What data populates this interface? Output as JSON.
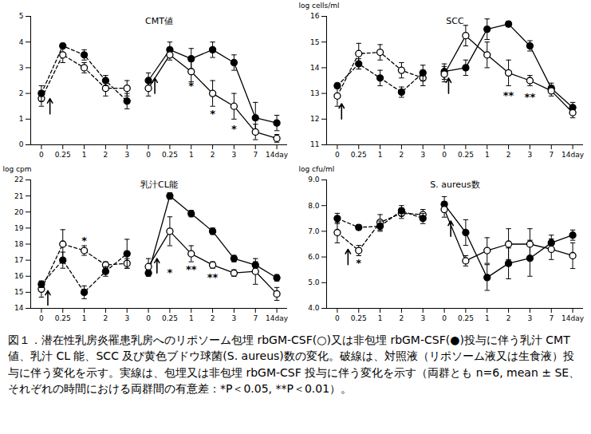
{
  "chart_data": [
    {
      "type": "line",
      "title": "CMT値",
      "ylabel": null,
      "categories": [
        "0",
        "0.25",
        "1",
        "2",
        "3",
        "0",
        "0.25",
        "1",
        "2",
        "3",
        "7",
        "14day"
      ],
      "ylim": [
        0,
        5
      ],
      "yticks": [
        0,
        1,
        2,
        3,
        4,
        5
      ],
      "grid": false,
      "series": [
        {
          "color": "#000000",
          "marker": "circle_open",
          "line_style": "dashed",
          "values": [
            1.8,
            3.5,
            3.0,
            2.2,
            2.2,
            null,
            null,
            null,
            null,
            null,
            null,
            null
          ],
          "errors": [
            0.3,
            0.3,
            0.2,
            0.3,
            0.3,
            null,
            null,
            null,
            null,
            null,
            null,
            null
          ]
        },
        {
          "color": "#000000",
          "marker": "circle_filled",
          "line_style": "dashed",
          "values": [
            2.0,
            3.85,
            3.5,
            2.5,
            1.7,
            null,
            null,
            null,
            null,
            null,
            null,
            null
          ],
          "errors": [
            0.3,
            0.1,
            0.2,
            0.2,
            0.3,
            null,
            null,
            null,
            null,
            null,
            null,
            null
          ]
        },
        {
          "color": "#000000",
          "marker": "circle_filled",
          "line_style": "solid",
          "values": [
            null,
            null,
            null,
            null,
            null,
            2.5,
            3.7,
            3.35,
            3.7,
            3.2,
            1.05,
            0.85
          ],
          "errors": [
            null,
            null,
            null,
            null,
            null,
            0.3,
            0.3,
            0.4,
            0.3,
            0.3,
            0.6,
            0.3
          ]
        },
        {
          "color": "#000000",
          "marker": "circle_open",
          "line_style": "solid",
          "values": [
            null,
            null,
            null,
            null,
            null,
            2.2,
            3.5,
            2.85,
            2.0,
            1.5,
            0.5,
            0.25
          ],
          "errors": [
            null,
            null,
            null,
            null,
            null,
            0.3,
            0.2,
            0.4,
            0.5,
            0.5,
            0.3,
            0.15
          ]
        }
      ],
      "annotations": [
        {
          "x": 7,
          "y": 2.3,
          "text": "*"
        },
        {
          "x": 8,
          "y": 1.2,
          "text": "*"
        },
        {
          "x": 9,
          "y": 0.6,
          "text": "*"
        }
      ],
      "arrows": [
        {
          "x": 0.4,
          "y1": 1.2,
          "y2": 1.8
        },
        {
          "x": 5.3,
          "y1": 2.0,
          "y2": 2.6
        }
      ]
    },
    {
      "type": "line",
      "title": "SCC",
      "ylabel": "log cells/ml",
      "categories": [
        "0",
        "0.25",
        "1",
        "2",
        "3",
        "0",
        "0.25",
        "1",
        "2",
        "3",
        "7",
        "14day"
      ],
      "ylim": [
        11,
        16
      ],
      "yticks": [
        11,
        12,
        13,
        14,
        15,
        16
      ],
      "grid": false,
      "series": [
        {
          "color": "#000000",
          "marker": "circle_open",
          "line_style": "dashed",
          "values": [
            12.9,
            14.55,
            14.6,
            13.9,
            13.6,
            null,
            null,
            null,
            null,
            null,
            null,
            null
          ],
          "errors": [
            0.4,
            0.4,
            0.3,
            0.3,
            0.3,
            null,
            null,
            null,
            null,
            null,
            null,
            null
          ]
        },
        {
          "color": "#000000",
          "marker": "circle_filled",
          "line_style": "dashed",
          "values": [
            13.3,
            14.15,
            13.6,
            13.05,
            13.8,
            null,
            null,
            null,
            null,
            null,
            null,
            null
          ],
          "errors": [
            0.1,
            0.2,
            0.3,
            0.2,
            0.3,
            null,
            null,
            null,
            null,
            null,
            null,
            null
          ]
        },
        {
          "color": "#000000",
          "marker": "circle_filled",
          "line_style": "solid",
          "values": [
            null,
            null,
            null,
            null,
            null,
            13.85,
            14.0,
            15.5,
            15.7,
            14.85,
            13.2,
            12.45
          ],
          "errors": [
            null,
            null,
            null,
            null,
            null,
            0.3,
            0.3,
            0.4,
            0.1,
            0.2,
            0.2,
            0.2
          ]
        },
        {
          "color": "#000000",
          "marker": "circle_open",
          "line_style": "solid",
          "values": [
            null,
            null,
            null,
            null,
            null,
            13.75,
            15.25,
            14.5,
            13.8,
            13.5,
            13.1,
            12.25
          ],
          "errors": [
            null,
            null,
            null,
            null,
            null,
            0.3,
            0.4,
            0.5,
            0.5,
            0.2,
            0.2,
            0.2
          ]
        }
      ],
      "annotations": [
        {
          "x": 8,
          "y": 12.9,
          "text": "**"
        },
        {
          "x": 9,
          "y": 12.85,
          "text": "**"
        }
      ],
      "arrows": [
        {
          "x": 0.2,
          "y1": 12.0,
          "y2": 12.6
        },
        {
          "x": 5.2,
          "y1": 13.0,
          "y2": 13.6
        }
      ]
    },
    {
      "type": "line",
      "title": "乳汁CL能",
      "ylabel": "log cpm",
      "categories": [
        "0",
        "0.25",
        "1",
        "2",
        "3",
        "0",
        "0.25",
        "1",
        "2",
        "3",
        "7",
        "14day"
      ],
      "ylim": [
        14,
        22
      ],
      "yticks": [
        14,
        15,
        16,
        17,
        18,
        19,
        20,
        21,
        22
      ],
      "grid": false,
      "series": [
        {
          "color": "#000000",
          "marker": "circle_open",
          "line_style": "dashed",
          "values": [
            15.2,
            18.0,
            17.6,
            16.7,
            16.8,
            null,
            null,
            null,
            null,
            null,
            null,
            null
          ],
          "errors": [
            0.5,
            0.9,
            0.3,
            0.2,
            0.3,
            null,
            null,
            null,
            null,
            null,
            null,
            null
          ]
        },
        {
          "color": "#000000",
          "marker": "circle_filled",
          "line_style": "dashed",
          "values": [
            15.5,
            17.0,
            15.0,
            16.3,
            17.4,
            null,
            null,
            null,
            null,
            null,
            null,
            null
          ],
          "errors": [
            0.2,
            0.5,
            0.4,
            0.3,
            0.9,
            null,
            null,
            null,
            null,
            null,
            null,
            null
          ]
        },
        {
          "color": "#000000",
          "marker": "circle_filled",
          "line_style": "solid",
          "values": [
            null,
            null,
            null,
            null,
            null,
            16.2,
            21.0,
            19.9,
            18.8,
            17.1,
            16.7,
            15.9
          ],
          "errors": [
            null,
            null,
            null,
            null,
            null,
            0.2,
            0.2,
            0.2,
            0.2,
            0.2,
            0.2,
            0.2
          ]
        },
        {
          "color": "#000000",
          "marker": "circle_open",
          "line_style": "solid",
          "values": [
            null,
            null,
            null,
            null,
            null,
            16.6,
            18.8,
            17.4,
            16.7,
            16.2,
            16.3,
            14.9
          ],
          "errors": [
            null,
            null,
            null,
            null,
            null,
            0.5,
            0.9,
            0.5,
            0.2,
            0.2,
            0.8,
            0.4
          ]
        }
      ],
      "annotations": [
        {
          "x": 2,
          "y": 18.2,
          "text": "*"
        },
        {
          "x": 6,
          "y": 16.2,
          "text": "*"
        },
        {
          "x": 7,
          "y": 16.4,
          "text": "**"
        },
        {
          "x": 8,
          "y": 15.9,
          "text": "**"
        }
      ],
      "arrows": [
        {
          "x": 0.3,
          "y1": 14.2,
          "y2": 15.1
        },
        {
          "x": 5.4,
          "y1": 16.2,
          "y2": 17.1
        }
      ]
    },
    {
      "type": "line",
      "title": "S. aureus数",
      "ylabel": "log cfu/ml",
      "categories": [
        "0",
        "0.25",
        "1",
        "2",
        "3",
        "0",
        "0.25",
        "1",
        "2",
        "3",
        "7",
        "14day"
      ],
      "ylim": [
        4,
        9
      ],
      "yticks": [
        {
          "value": 4,
          "label": "4.0"
        },
        {
          "value": 5,
          "label": "5.0"
        },
        {
          "value": 6,
          "label": "6.0"
        },
        {
          "value": 7,
          "label": "7.0"
        },
        {
          "value": 8,
          "label": "8.0"
        },
        {
          "value": 9,
          "label": "9.0"
        }
      ],
      "grid": false,
      "series": [
        {
          "color": "#000000",
          "marker": "circle_open",
          "line_style": "dashed",
          "values": [
            6.95,
            6.25,
            7.35,
            7.7,
            7.65,
            null,
            null,
            null,
            null,
            null,
            null,
            null
          ],
          "errors": [
            0.4,
            0.2,
            0.3,
            0.2,
            0.2,
            null,
            null,
            null,
            null,
            null,
            null,
            null
          ]
        },
        {
          "color": "#000000",
          "marker": "circle_filled",
          "line_style": "dashed",
          "values": [
            7.5,
            7.15,
            7.2,
            7.8,
            7.5,
            null,
            null,
            null,
            null,
            null,
            null,
            null
          ],
          "errors": [
            0.2,
            0.1,
            0.2,
            0.2,
            0.2,
            null,
            null,
            null,
            null,
            null,
            null,
            null
          ]
        },
        {
          "color": "#000000",
          "marker": "circle_filled",
          "line_style": "solid",
          "values": [
            null,
            null,
            null,
            null,
            null,
            8.05,
            6.95,
            5.2,
            5.75,
            5.95,
            6.55,
            6.85
          ],
          "errors": [
            null,
            null,
            null,
            null,
            null,
            0.3,
            0.5,
            0.5,
            0.6,
            0.7,
            0.3,
            0.2
          ]
        },
        {
          "color": "#000000",
          "marker": "circle_open",
          "line_style": "solid",
          "values": [
            null,
            null,
            null,
            null,
            null,
            7.85,
            5.85,
            6.25,
            6.5,
            6.5,
            6.3,
            6.05
          ],
          "errors": [
            null,
            null,
            null,
            null,
            null,
            0.3,
            0.2,
            0.5,
            0.6,
            0.6,
            0.4,
            0.5
          ]
        }
      ],
      "annotations": [
        {
          "x": 1,
          "y": 5.75,
          "text": "*"
        }
      ],
      "arrows": [
        {
          "x": 0.5,
          "y1": 5.7,
          "y2": 6.3
        },
        {
          "x": 5.3,
          "y1": 6.8,
          "y2": 7.4
        }
      ]
    }
  ],
  "caption": "図１．潜在性乳房炎罹患乳房へのリポソーム包埋 rbGM-CSF(○)又は非包埋 rbGM-CSF(●)投与に伴う乳汁 CMT 値、乳汁 CL 能、SCC 及び黄色ブドウ球菌(S. aureus)数の変化。破線は、対照液（リポソーム液又は生食液）投与に伴う変化を示す。実線は、包埋又は非包埋 rbGM-CSF 投与に伴う変化を示す（両群とも n=6, mean ± SE、それぞれの時間における両群間の有意差：*P＜0.05, **P＜0.01）。"
}
